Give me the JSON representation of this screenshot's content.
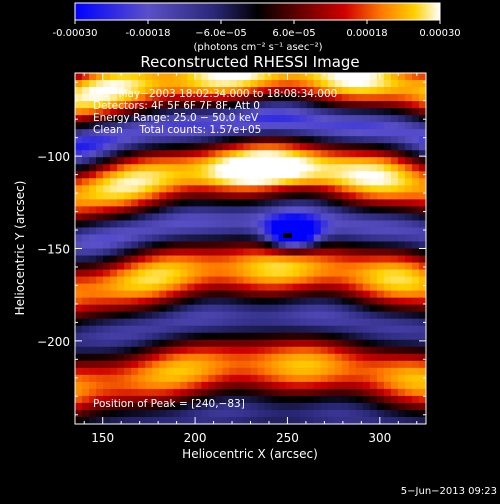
{
  "colorbar": {
    "tick_labels": [
      "-0.00030",
      "-0.00018",
      "−6.0e−05",
      "6.0e−05",
      "0.00018",
      "0.00030"
    ],
    "unit_label": "(photons cm⁻² s⁻¹ asec⁻²)",
    "colors": [
      "#0000ff",
      "#5a50c8",
      "#2a2878",
      "#000000",
      "#5a0000",
      "#c80000",
      "#ff7a00",
      "#ffd000",
      "#ffffff"
    ]
  },
  "chart_data": {
    "type": "heatmap",
    "title": "Reconstructed RHESSI Image",
    "xlabel": "Heliocentric X (arcsec)",
    "ylabel": "Heliocentric Y (arcsec)",
    "xlim": [
      135,
      325
    ],
    "ylim": [
      -245,
      -55
    ],
    "x_ticks": [
      150,
      200,
      250,
      300
    ],
    "x_tick_labels": [
      "150",
      "200",
      "250",
      "300"
    ],
    "y_ticks": [
      -100,
      -150,
      -200
    ],
    "y_tick_labels": [
      "−100",
      "−150",
      "−200"
    ],
    "zlim": [
      -0.0003,
      0.0003
    ],
    "peak": {
      "x": 240,
      "y": -83
    },
    "min_marker": {
      "x": 250,
      "y": -143
    },
    "annotations": [
      "1−May−2003 18:02:34.000 to 18:08:34.000",
      "Detectors: 4F 5F 6F 7F 8F, Att 0",
      "Energy Range: 25.0 − 50.0 keV",
      "Clean     Total counts: 1.57e+05"
    ],
    "peak_label": "Position of Peak = [240,−83]"
  },
  "footer": {
    "timestamp": "5−Jun−2013 09:23"
  }
}
